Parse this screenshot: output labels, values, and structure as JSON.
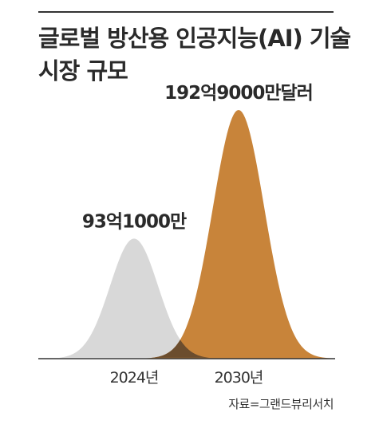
{
  "title": {
    "line1": "글로벌 방산용 인공지능(AI) 기술",
    "line2": "시장 규모"
  },
  "source": "자료=그랜드뷰리서치",
  "colors": {
    "series_2024": "#d8d8d8",
    "series_2030": "#c8843a",
    "overlap": "#6b4d2e",
    "baseline": "#333333"
  },
  "chart_data": {
    "type": "area",
    "categories": [
      "2024년",
      "2030년"
    ],
    "values": [
      9310000000,
      19290000000
    ],
    "value_labels": [
      "93억1000만",
      "192억9000만달러"
    ],
    "title": "글로벌 방산용 인공지능(AI) 기술 시장 규모",
    "xlabel": "",
    "ylabel": "",
    "grid": false
  }
}
